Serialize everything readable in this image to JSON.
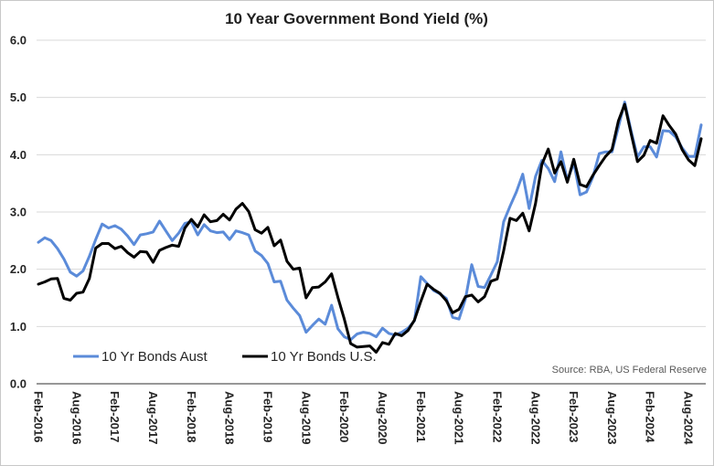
{
  "chart_data": {
    "type": "line",
    "title": "10 Year Government Bond Yield (%)",
    "ylim": [
      0,
      6
    ],
    "grid": "horizontal",
    "legend_position": "bottom-left",
    "y_tick_labels": [
      "0.0",
      "1.0",
      "2.0",
      "3.0",
      "4.0",
      "5.0",
      "6.0"
    ],
    "x_tick_labels": [
      "Feb-2016",
      "Aug-2016",
      "Feb-2017",
      "Aug-2017",
      "Feb-2018",
      "Aug-2018",
      "Feb-2019",
      "Aug-2019",
      "Feb-2020",
      "Aug-2020",
      "Feb-2021",
      "Aug-2021",
      "Feb-2022",
      "Aug-2022",
      "Feb-2023",
      "Aug-2023",
      "Feb-2024",
      "Aug-2024"
    ],
    "x": [
      "2016-02",
      "2016-03",
      "2016-04",
      "2016-05",
      "2016-06",
      "2016-07",
      "2016-08",
      "2016-09",
      "2016-10",
      "2016-11",
      "2016-12",
      "2017-01",
      "2017-02",
      "2017-03",
      "2017-04",
      "2017-05",
      "2017-06",
      "2017-07",
      "2017-08",
      "2017-09",
      "2017-10",
      "2017-11",
      "2017-12",
      "2018-01",
      "2018-02",
      "2018-03",
      "2018-04",
      "2018-05",
      "2018-06",
      "2018-07",
      "2018-08",
      "2018-09",
      "2018-10",
      "2018-11",
      "2018-12",
      "2019-01",
      "2019-02",
      "2019-03",
      "2019-04",
      "2019-05",
      "2019-06",
      "2019-07",
      "2019-08",
      "2019-09",
      "2019-10",
      "2019-11",
      "2019-12",
      "2020-01",
      "2020-02",
      "2020-03",
      "2020-04",
      "2020-05",
      "2020-06",
      "2020-07",
      "2020-08",
      "2020-09",
      "2020-10",
      "2020-11",
      "2020-12",
      "2021-01",
      "2021-02",
      "2021-03",
      "2021-04",
      "2021-05",
      "2021-06",
      "2021-07",
      "2021-08",
      "2021-09",
      "2021-10",
      "2021-11",
      "2021-12",
      "2022-01",
      "2022-02",
      "2022-03",
      "2022-04",
      "2022-05",
      "2022-06",
      "2022-07",
      "2022-08",
      "2022-09",
      "2022-10",
      "2022-11",
      "2022-12",
      "2023-01",
      "2023-02",
      "2023-03",
      "2023-04",
      "2023-05",
      "2023-06",
      "2023-07",
      "2023-08",
      "2023-09",
      "2023-10",
      "2023-11",
      "2023-12",
      "2024-01",
      "2024-02",
      "2024-03",
      "2024-04",
      "2024-05",
      "2024-06",
      "2024-07",
      "2024-08",
      "2024-09",
      "2024-10"
    ],
    "series": [
      {
        "name": "10 Yr Bonds Aust",
        "color": "#5b8bd9",
        "values": [
          2.47,
          2.55,
          2.5,
          2.36,
          2.18,
          1.95,
          1.88,
          1.97,
          2.23,
          2.52,
          2.79,
          2.72,
          2.76,
          2.7,
          2.58,
          2.43,
          2.6,
          2.62,
          2.65,
          2.84,
          2.67,
          2.5,
          2.63,
          2.8,
          2.83,
          2.6,
          2.78,
          2.67,
          2.64,
          2.65,
          2.52,
          2.67,
          2.64,
          2.6,
          2.32,
          2.24,
          2.1,
          1.78,
          1.79,
          1.46,
          1.32,
          1.19,
          0.9,
          1.02,
          1.13,
          1.04,
          1.37,
          0.96,
          0.82,
          0.77,
          0.87,
          0.9,
          0.88,
          0.82,
          0.97,
          0.88,
          0.85,
          0.9,
          0.97,
          1.1,
          1.87,
          1.75,
          1.63,
          1.57,
          1.49,
          1.16,
          1.13,
          1.48,
          2.08,
          1.7,
          1.68,
          1.9,
          2.13,
          2.83,
          3.1,
          3.35,
          3.66,
          3.06,
          3.62,
          3.9,
          3.76,
          3.53,
          4.05,
          3.55,
          3.86,
          3.3,
          3.35,
          3.61,
          4.02,
          4.05,
          4.05,
          4.48,
          4.92,
          4.42,
          3.96,
          4.14,
          4.14,
          3.96,
          4.42,
          4.41,
          4.31,
          4.12,
          3.97,
          3.97,
          4.52
        ]
      },
      {
        "name": "10 Yr Bonds U.S.",
        "color": "#000000",
        "values": [
          1.74,
          1.78,
          1.83,
          1.84,
          1.49,
          1.46,
          1.58,
          1.6,
          1.84,
          2.37,
          2.45,
          2.45,
          2.36,
          2.4,
          2.29,
          2.21,
          2.31,
          2.3,
          2.12,
          2.33,
          2.38,
          2.42,
          2.4,
          2.72,
          2.87,
          2.74,
          2.95,
          2.83,
          2.85,
          2.96,
          2.86,
          3.05,
          3.15,
          3.01,
          2.69,
          2.63,
          2.73,
          2.41,
          2.51,
          2.14,
          2.0,
          2.02,
          1.5,
          1.68,
          1.69,
          1.78,
          1.92,
          1.51,
          1.13,
          0.7,
          0.64,
          0.65,
          0.66,
          0.55,
          0.72,
          0.69,
          0.88,
          0.84,
          0.93,
          1.11,
          1.44,
          1.74,
          1.65,
          1.58,
          1.45,
          1.24,
          1.3,
          1.52,
          1.55,
          1.43,
          1.52,
          1.79,
          1.83,
          2.32,
          2.89,
          2.85,
          2.98,
          2.67,
          3.15,
          3.83,
          4.1,
          3.68,
          3.88,
          3.52,
          3.92,
          3.48,
          3.44,
          3.64,
          3.81,
          3.97,
          4.09,
          4.59,
          4.88,
          4.37,
          3.88,
          3.99,
          4.25,
          4.2,
          4.68,
          4.51,
          4.36,
          4.09,
          3.91,
          3.81,
          4.28
        ]
      }
    ],
    "source": "Source: RBA, US Federal Reserve"
  }
}
